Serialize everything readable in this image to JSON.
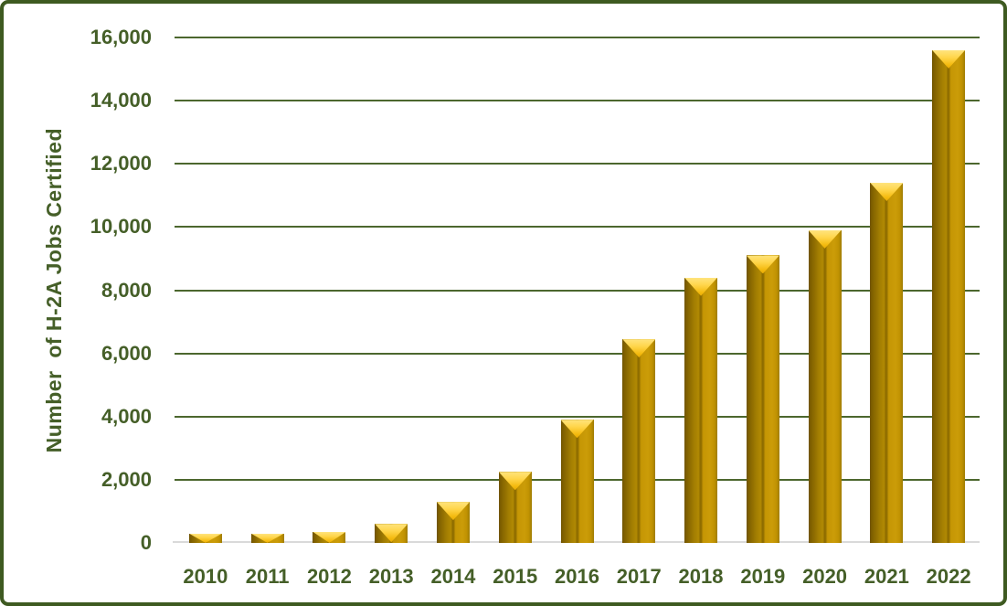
{
  "chart": {
    "background": "#ffffff",
    "border_color": "#3e5a21"
  },
  "chart_data": {
    "type": "bar",
    "title": "",
    "xlabel": "",
    "ylabel": "Number  of H-2A Jobs Certified",
    "categories": [
      "2010",
      "2011",
      "2012",
      "2013",
      "2014",
      "2015",
      "2016",
      "2017",
      "2018",
      "2019",
      "2020",
      "2021",
      "2022"
    ],
    "values": [
      300,
      300,
      350,
      600,
      1300,
      2250,
      3900,
      6450,
      8400,
      9100,
      9900,
      11400,
      15600
    ],
    "ylim": [
      0,
      16000
    ],
    "ytick_step": 2000,
    "yticks": [
      {
        "value": 0,
        "label": "0"
      },
      {
        "value": 2000,
        "label": "2,000"
      },
      {
        "value": 4000,
        "label": "4,000"
      },
      {
        "value": 6000,
        "label": "6,000"
      },
      {
        "value": 8000,
        "label": "8,000"
      },
      {
        "value": 10000,
        "label": "10,000"
      },
      {
        "value": 12000,
        "label": "12,000"
      },
      {
        "value": 14000,
        "label": "14,000"
      },
      {
        "value": 16000,
        "label": "16,000"
      }
    ],
    "grid": "horizontal",
    "legend_position": "none",
    "colors": {
      "bar_body": "#C09302",
      "bar_body_shadow": "#8F6D00",
      "bar_bevel_highlight": "#FFD54A",
      "axis_text": "#455F28",
      "gridline": "#4C672E",
      "zero_baseline": "#D9D9D9"
    }
  }
}
